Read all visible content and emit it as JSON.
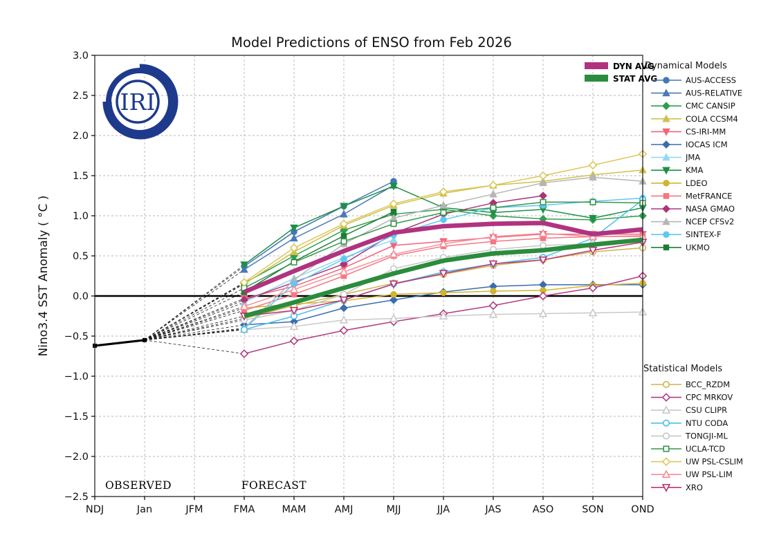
{
  "title": "Model Predictions of ENSO from Feb 2026",
  "ylabel": "Nino3.4 SST Anomaly ( °C )",
  "logo": {
    "text": "IRI",
    "color": "#1e3a8c"
  },
  "annotations": {
    "observed": "OBSERVED",
    "forecast": "FORECAST",
    "color": "#1b1ba6"
  },
  "legend_headers": {
    "dynamical": "Dynamical Models",
    "statistical": "Statistical Models"
  },
  "avg_legend": [
    {
      "label": "DYN AVG",
      "color": "#b03380"
    },
    {
      "label": "STAT AVG",
      "color": "#2a8c3c"
    }
  ],
  "chart_data": {
    "type": "line",
    "x_categories": [
      "NDJ",
      "Jan",
      "JFM",
      "FMA",
      "MAM",
      "AMJ",
      "MJJ",
      "JJA",
      "JAS",
      "ASO",
      "SON",
      "OND"
    ],
    "ylim": [
      -2.5,
      3.0
    ],
    "ytick_step": 0.5,
    "grid": true,
    "forecast_start_index": 3,
    "observed": {
      "categories": [
        "NDJ",
        "Jan"
      ],
      "values": [
        -0.62,
        -0.55
      ],
      "color": "#000000"
    },
    "averages": [
      {
        "name": "DYN AVG",
        "color": "#b03380",
        "values": [
          0.05,
          0.31,
          0.56,
          0.79,
          0.87,
          0.9,
          0.91,
          0.77,
          0.83
        ]
      },
      {
        "name": "STAT AVG",
        "color": "#2a8c3c",
        "values": [
          -0.25,
          -0.08,
          0.1,
          0.28,
          0.44,
          0.53,
          0.57,
          0.64,
          0.7
        ]
      }
    ],
    "dynamical_models": [
      {
        "name": "AUS-ACCESS",
        "color": "#4477b3",
        "marker": "circle",
        "filled": true,
        "values": [
          0.37,
          0.8,
          1.12,
          1.43
        ]
      },
      {
        "name": "AUS-RELATIVE",
        "color": "#4a7ab5",
        "marker": "triangle-up",
        "filled": true,
        "values": [
          0.33,
          0.72,
          1.02,
          1.38
        ]
      },
      {
        "name": "CMC CANSIP",
        "color": "#2f9e4f",
        "marker": "diamond",
        "filled": true,
        "values": [
          0.16,
          0.5,
          0.82,
          1.02,
          1.08,
          1.0,
          0.96,
          0.95,
          1.0
        ]
      },
      {
        "name": "COLA CCSM4",
        "color": "#cfc04d",
        "marker": "triangle-up",
        "filled": true,
        "values": [
          0.15,
          0.55,
          0.88,
          1.13,
          1.28,
          1.38,
          1.43,
          1.51,
          1.57
        ]
      },
      {
        "name": "CS-IRI-MM",
        "color": "#f2637a",
        "marker": "triangle-down",
        "filled": true,
        "values": [
          -0.03,
          0.12,
          0.35,
          0.63,
          0.68,
          0.73,
          0.77,
          0.77,
          0.77
        ]
      },
      {
        "name": "IOCAS ICM",
        "color": "#3b6cb0",
        "marker": "diamond",
        "filled": true,
        "values": [
          -0.36,
          -0.32,
          -0.15,
          -0.05,
          0.05,
          0.12,
          0.14,
          0.14,
          0.14
        ]
      },
      {
        "name": "JMA",
        "color": "#92d9f5",
        "marker": "triangle-up",
        "filled": true,
        "values": [
          -0.08,
          0.22,
          0.48,
          0.7
        ]
      },
      {
        "name": "KMA",
        "color": "#1f8f45",
        "marker": "triangle-down",
        "filled": true,
        "values": [
          0.39,
          0.85,
          1.12,
          1.37,
          1.1,
          1.04,
          1.08,
          0.97,
          1.1
        ]
      },
      {
        "name": "LDEO",
        "color": "#d0b52e",
        "marker": "circle",
        "filled": true,
        "values": [
          -0.15,
          -0.1,
          -0.06,
          0.02,
          0.04,
          0.06,
          0.07,
          0.13,
          0.16
        ]
      },
      {
        "name": "MetFRANCE",
        "color": "#f37782",
        "marker": "square",
        "filled": true,
        "values": [
          -0.18,
          0.02,
          0.25,
          0.5,
          0.62,
          0.68,
          0.72,
          0.74,
          0.75
        ]
      },
      {
        "name": "NASA GMAO",
        "color": "#aa3579",
        "marker": "diamond",
        "filled": true,
        "values": [
          -0.05,
          0.17,
          0.4,
          0.78,
          1.02,
          1.16,
          1.25
        ]
      },
      {
        "name": "NCEP CFSv2",
        "color": "#b5b5b5",
        "marker": "triangle-up",
        "filled": true,
        "values": [
          -0.4,
          0.2,
          0.65,
          0.97,
          1.13,
          1.27,
          1.41,
          1.48,
          1.43
        ]
      },
      {
        "name": "SINTEX-F",
        "color": "#5ec8f2",
        "marker": "circle",
        "filled": true,
        "values": [
          -0.41,
          0.15,
          0.46,
          0.76,
          0.95,
          1.1,
          1.13,
          1.18,
          1.22
        ]
      },
      {
        "name": "UKMO",
        "color": "#1e7d34",
        "marker": "square",
        "filled": true,
        "values": [
          0.05,
          0.43,
          0.75,
          1.05
        ]
      }
    ],
    "statistical_models": [
      {
        "name": "BCC_RZDM",
        "color": "#cbb54a",
        "marker": "circle",
        "filled": false,
        "values": [
          -0.28,
          -0.12,
          0.02,
          0.16,
          0.27,
          0.38,
          0.45,
          0.55,
          0.6
        ]
      },
      {
        "name": "CPC MRKOV",
        "color": "#b13c80",
        "marker": "diamond",
        "filled": false,
        "values": [
          -0.72,
          -0.56,
          -0.43,
          -0.32,
          -0.22,
          -0.12,
          0.0,
          0.1,
          0.25
        ]
      },
      {
        "name": "CSU CLIPR",
        "color": "#c9c9c9",
        "marker": "triangle-up",
        "filled": false,
        "values": [
          -0.42,
          -0.38,
          -0.3,
          -0.28,
          -0.25,
          -0.23,
          -0.22,
          -0.21,
          -0.2
        ]
      },
      {
        "name": "NTU CODA",
        "color": "#49bfe8",
        "marker": "circle",
        "filled": false,
        "values": [
          -0.42,
          -0.25,
          -0.05,
          0.15,
          0.3,
          0.4,
          0.48,
          0.72,
          1.2
        ]
      },
      {
        "name": "TONGJI-ML",
        "color": "#c6c6c6",
        "marker": "circle",
        "filled": false,
        "values": [
          -0.3,
          -0.18,
          0.02,
          0.34,
          0.48,
          0.58,
          0.63,
          0.65,
          0.68
        ]
      },
      {
        "name": "UCLA-TCD",
        "color": "#35964a",
        "marker": "square",
        "filled": false,
        "values": [
          0.1,
          0.42,
          0.68,
          0.9,
          1.04,
          1.1,
          1.17,
          1.17,
          1.16
        ]
      },
      {
        "name": "UW PSL-CSLIM",
        "color": "#dcc75a",
        "marker": "diamond",
        "filled": false,
        "values": [
          0.17,
          0.6,
          0.9,
          1.15,
          1.3,
          1.38,
          1.5,
          1.63,
          1.77
        ]
      },
      {
        "name": "UW PSL-LIM",
        "color": "#f58e97",
        "marker": "triangle-up",
        "filled": false,
        "values": [
          -0.13,
          0.08,
          0.3,
          0.52,
          0.65,
          0.74,
          0.78,
          0.74,
          0.74
        ]
      },
      {
        "name": "XRO",
        "color": "#bb3377",
        "marker": "triangle-down",
        "filled": false,
        "values": [
          -0.25,
          -0.18,
          -0.05,
          0.15,
          0.28,
          0.4,
          0.45,
          0.57,
          0.67
        ]
      }
    ]
  }
}
